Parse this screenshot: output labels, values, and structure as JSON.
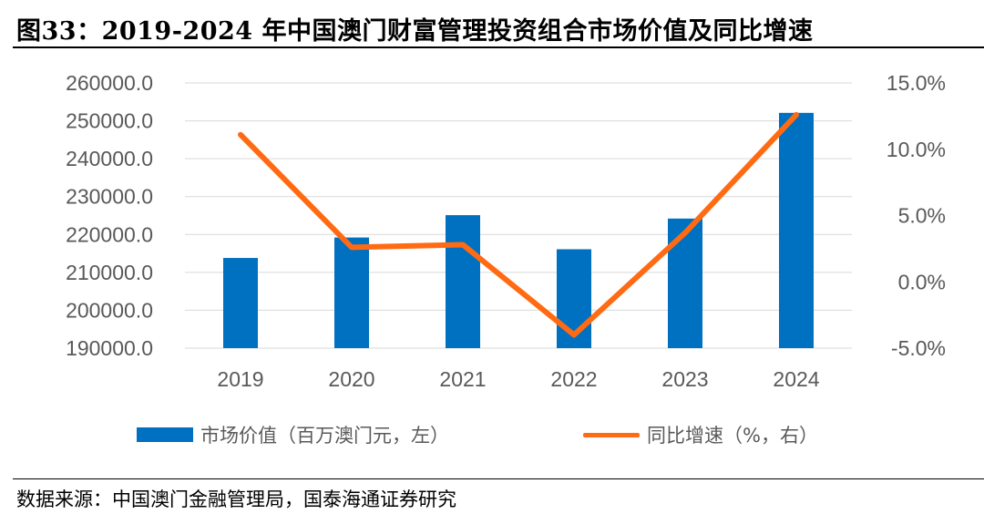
{
  "title": "图33：2019-2024 年中国澳门财富管理投资组合市场价值及同比增速",
  "source": "数据来源：中国澳门金融管理局，国泰海通证券研究",
  "colors": {
    "bar": "#0070C0",
    "line": "#FF6A13",
    "axis_text": "#595959",
    "grid": "#D9D9D9"
  },
  "chart_data": {
    "type": "bar",
    "categories": [
      "2019",
      "2020",
      "2021",
      "2022",
      "2023",
      "2024"
    ],
    "series": [
      {
        "name": "市场价值（百万澳门元，左）",
        "type": "bar",
        "axis": "left",
        "values": [
          213800,
          219200,
          225100,
          216100,
          224200,
          252100
        ]
      },
      {
        "name": "同比增速（%，右）",
        "type": "line",
        "axis": "right",
        "values": [
          11.1,
          2.6,
          2.8,
          -4.0,
          3.7,
          12.6
        ]
      }
    ],
    "y_left": {
      "min": 190000,
      "max": 260000,
      "step": 10000,
      "ticks": [
        "260000.0",
        "250000.0",
        "240000.0",
        "230000.0",
        "220000.0",
        "210000.0",
        "200000.0",
        "190000.0"
      ]
    },
    "y_right": {
      "min": -5,
      "max": 15,
      "step": 5,
      "ticks": [
        "15.0%",
        "10.0%",
        "5.0%",
        "0.0%",
        "-5.0%"
      ]
    },
    "grid": true,
    "legend_position": "bottom"
  }
}
